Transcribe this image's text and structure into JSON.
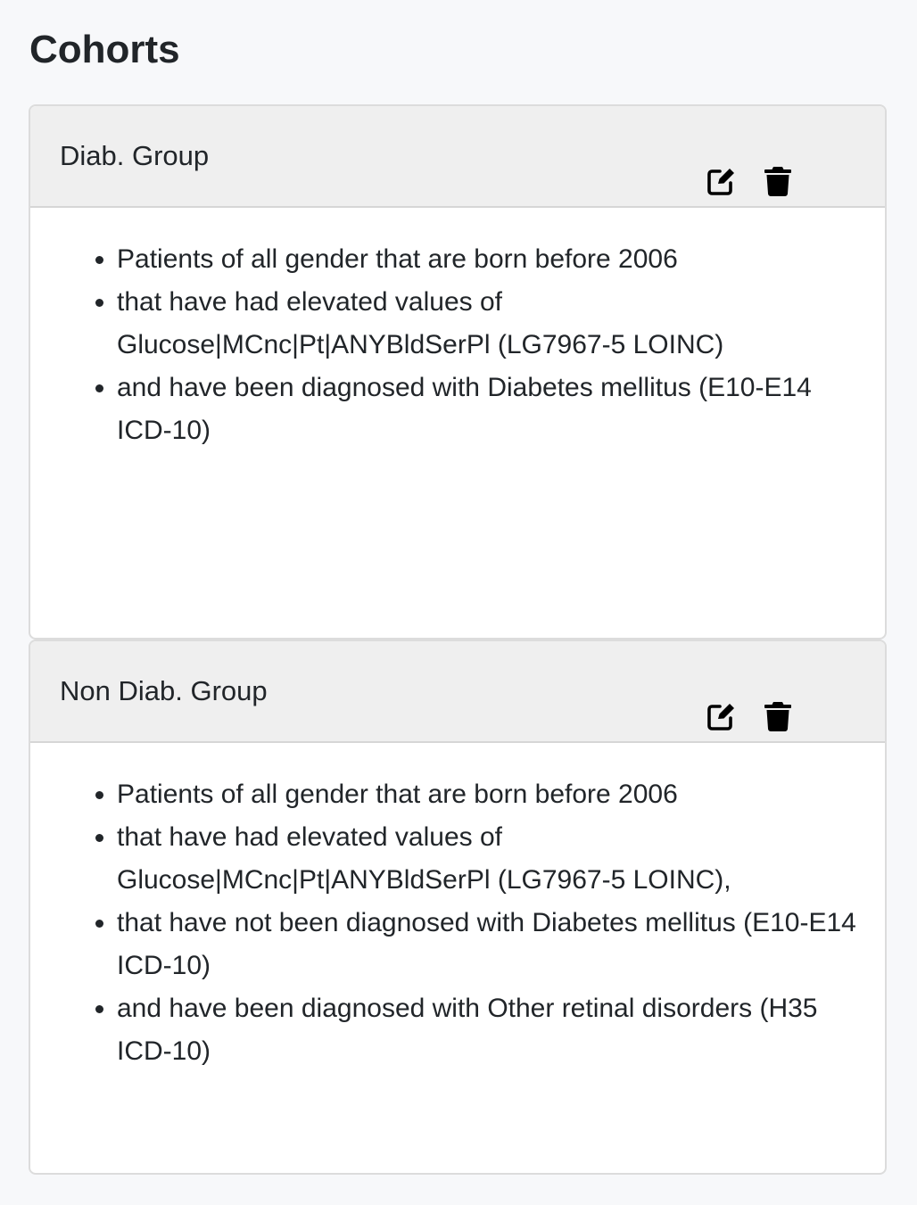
{
  "page": {
    "title": "Cohorts"
  },
  "cohorts": [
    {
      "name": "Diab. Group",
      "edit_icon": "edit-icon",
      "delete_icon": "trash-icon",
      "criteria": [
        "Patients of all gender that are born before 2006",
        "that have had elevated values of Glucose|MCnc|Pt|ANYBldSerPl (LG7967-5 LOINC)",
        "and have been diagnosed with Diabetes mellitus (E10-E14 ICD-10)"
      ]
    },
    {
      "name": "Non Diab. Group",
      "edit_icon": "edit-icon",
      "delete_icon": "trash-icon",
      "criteria": [
        "Patients of all gender that are born before 2006",
        "that have had elevated values of Glucose|MCnc|Pt|ANYBldSerPl (LG7967-5 LOINC),",
        "that have not been diagnosed with Diabetes mellitus (E10-E14 ICD-10)",
        "and have been diagnosed with Other retinal disorders (H35 ICD-10)"
      ]
    }
  ],
  "colors": {
    "page_background": "#f7f8fa",
    "card_header": "#efefef",
    "card_border": "#dcdcdc",
    "text": "#212529",
    "icon": "#000000"
  }
}
